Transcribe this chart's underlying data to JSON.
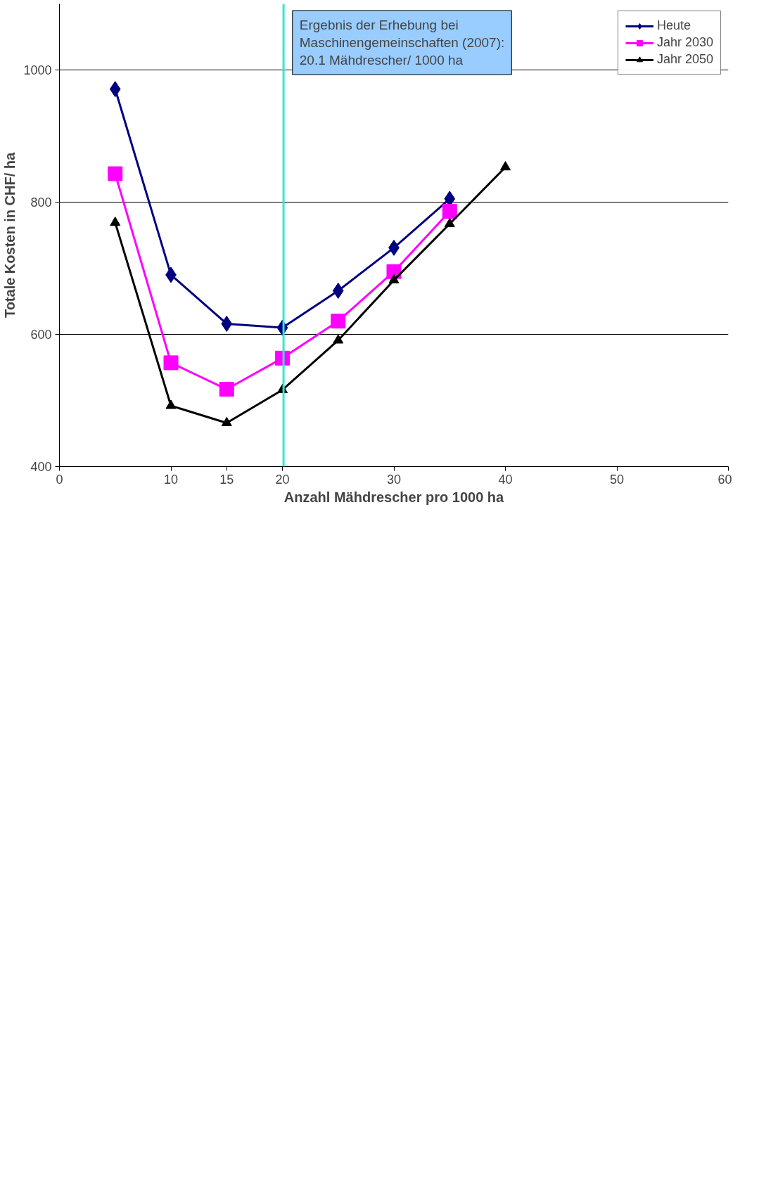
{
  "chart_data": {
    "type": "line",
    "xlabel": "Anzahl Mähdrescher pro 1000 ha",
    "ylabel": "Totale Kosten in CHF/ ha",
    "x": [
      5,
      10,
      15,
      20,
      25,
      30,
      35,
      40
    ],
    "series": [
      {
        "name": "Heute",
        "color": "#000080",
        "marker": "diamond",
        "values": [
          971,
          690,
          616,
          610,
          666,
          731,
          805,
          null
        ]
      },
      {
        "name": "Jahr 2030",
        "color": "#ff00ff",
        "marker": "square",
        "values": [
          843,
          557,
          517,
          564,
          620,
          695,
          786,
          null
        ]
      },
      {
        "name": "Jahr 2050",
        "color": "#000000",
        "marker": "triangle",
        "values": [
          769,
          492,
          466,
          516,
          591,
          682,
          767,
          853
        ]
      }
    ],
    "xlim": [
      0,
      60
    ],
    "xticks": [
      0,
      10,
      15,
      20,
      30,
      40,
      50,
      60
    ],
    "ylim": [
      400,
      1100
    ],
    "yticks": [
      400,
      600,
      800,
      1000
    ],
    "grid": "y",
    "legend": "top right",
    "line_style": "solid",
    "ref_lines": [
      {
        "axis": "x",
        "value": 20.1,
        "label": "Ergebnis der Erhebung bei\nMaschinengemeinschaften (2007):\n20.1 Mähdrescher/ 1000 ha",
        "color": "#33e6d9"
      }
    ]
  }
}
